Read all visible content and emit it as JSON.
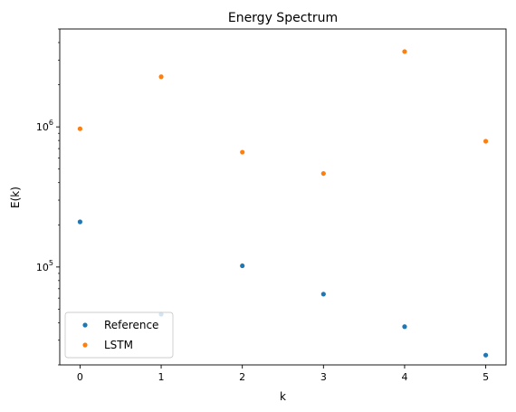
{
  "chart_data": {
    "type": "scatter",
    "title": "Energy Spectrum",
    "xlabel": "k",
    "ylabel": "E(k)",
    "x": [
      0,
      1,
      2,
      3,
      4,
      5
    ],
    "xticks": [
      {
        "value": 0,
        "label": "0"
      },
      {
        "value": 1,
        "label": "1"
      },
      {
        "value": 2,
        "label": "2"
      },
      {
        "value": 3,
        "label": "3"
      },
      {
        "value": 4,
        "label": "4"
      },
      {
        "value": 5,
        "label": "5"
      }
    ],
    "yscale": "log",
    "ylim": [
      20000,
      5000000
    ],
    "xlim": [
      -0.25,
      5.25
    ],
    "yticks_major": [
      {
        "value": 100000,
        "base": "10",
        "exp": "5"
      },
      {
        "value": 1000000,
        "base": "10",
        "exp": "6"
      }
    ],
    "grid": false,
    "legend": "lower-left",
    "series": [
      {
        "name": "Reference",
        "color": "#1f77b4",
        "values": [
          210000,
          46000,
          102000,
          64000,
          37500,
          23500
        ]
      },
      {
        "name": "LSTM",
        "color": "#ff7f0e",
        "values": [
          970000,
          2280000,
          660000,
          465000,
          3450000,
          790000
        ]
      }
    ]
  }
}
